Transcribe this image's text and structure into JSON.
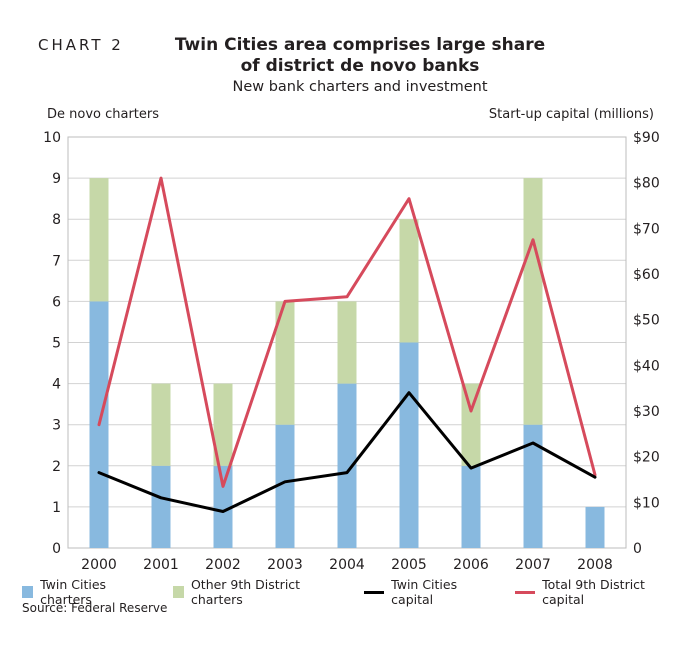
{
  "header": {
    "chart_number": "CHART 2",
    "title_line1": "Twin Cities area comprises large share",
    "title_line2": "of district de novo banks",
    "subtitle": "New bank charters and investment"
  },
  "source": "Source: Federal Reserve",
  "colors": {
    "twin_cities_charters": "#88b9df",
    "other_charters": "#c6d8a8",
    "twin_cities_capital": "#000000",
    "total_capital": "#d64a5c",
    "gridline": "#d2d2d2",
    "plot_border": "#bdbdbd"
  },
  "chart_data": {
    "type": "bar",
    "categories": [
      "2000",
      "2001",
      "2002",
      "2003",
      "2004",
      "2005",
      "2006",
      "2007",
      "2008"
    ],
    "ylabel": "De novo charters",
    "ylabel_right": "Start-up capital (millions)",
    "ylim": [
      0,
      10
    ],
    "ylim_right": [
      0,
      90
    ],
    "yticks": [
      "0",
      "1",
      "2",
      "3",
      "4",
      "5",
      "6",
      "7",
      "8",
      "9",
      "10"
    ],
    "yticks_right": [
      "0",
      "$10",
      "$20",
      "$30",
      "$40",
      "$50",
      "$60",
      "$70",
      "$80",
      "$90"
    ],
    "grid": true,
    "legend_position": "bottom",
    "series": [
      {
        "name": "Twin Cities charters",
        "kind": "stacked-bar",
        "axis": "left",
        "values": [
          6,
          2,
          2,
          3,
          4,
          5,
          2,
          3,
          1
        ]
      },
      {
        "name": "Other 9th District charters",
        "kind": "stacked-bar",
        "axis": "left",
        "values": [
          3,
          2,
          2,
          3,
          2,
          3,
          2,
          6,
          0
        ]
      },
      {
        "name": "Twin Cities capital",
        "kind": "line",
        "axis": "right",
        "values": [
          16.5,
          11,
          8,
          14.5,
          16.5,
          34,
          17.5,
          23,
          15.5
        ]
      },
      {
        "name": "Total 9th District capital",
        "kind": "line",
        "axis": "right",
        "values": [
          27,
          81,
          13.5,
          54,
          55,
          76.5,
          30,
          67.5,
          16
        ]
      }
    ]
  }
}
